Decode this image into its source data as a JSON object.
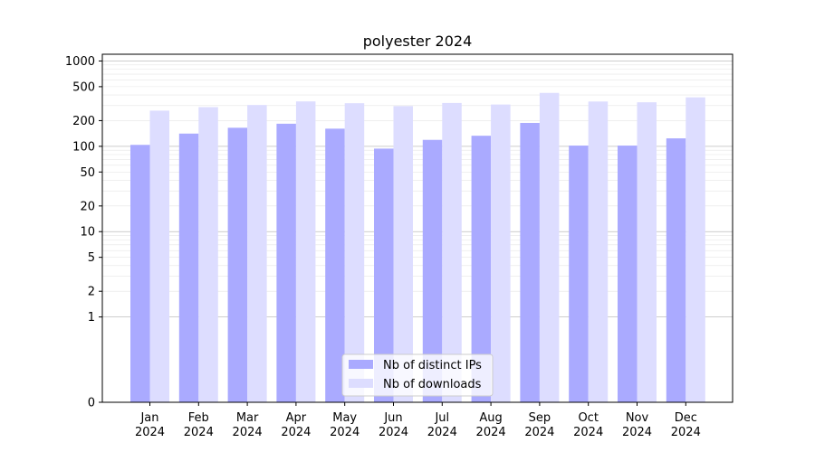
{
  "chart_data": {
    "type": "bar",
    "title": "polyester 2024",
    "xlabel": "",
    "ylabel": "",
    "y_scale": "symlog",
    "ylim": [
      0,
      1200
    ],
    "y_ticks": [
      0,
      1,
      2,
      5,
      10,
      20,
      50,
      100,
      200,
      500,
      1000
    ],
    "grid": true,
    "legend_position": "bottom-center",
    "categories": [
      [
        "Jan",
        "2024"
      ],
      [
        "Feb",
        "2024"
      ],
      [
        "Mar",
        "2024"
      ],
      [
        "Apr",
        "2024"
      ],
      [
        "May",
        "2024"
      ],
      [
        "Jun",
        "2024"
      ],
      [
        "Jul",
        "2024"
      ],
      [
        "Aug",
        "2024"
      ],
      [
        "Sep",
        "2024"
      ],
      [
        "Oct",
        "2024"
      ],
      [
        "Nov",
        "2024"
      ],
      [
        "Dec",
        "2024"
      ]
    ],
    "series": [
      {
        "name": "Nb of distinct IPs",
        "color": "#aaaaff",
        "values": [
          104,
          141,
          165,
          184,
          161,
          94,
          119,
          133,
          188,
          102,
          102,
          124
        ]
      },
      {
        "name": "Nb of downloads",
        "color": "#ddddff",
        "values": [
          262,
          288,
          305,
          336,
          320,
          296,
          322,
          309,
          423,
          335,
          328,
          375
        ]
      }
    ]
  }
}
